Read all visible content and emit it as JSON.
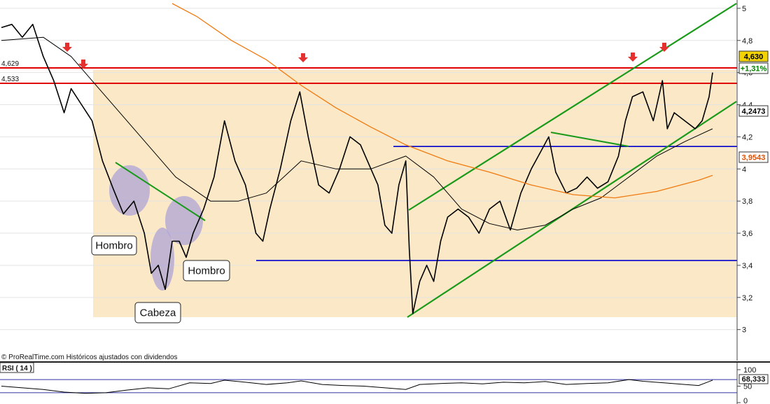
{
  "chart_data": {
    "type": "line",
    "price_panel": {
      "y_axis_ticks": [
        "3",
        "3,2",
        "3,4",
        "3,6",
        "3,8",
        "4",
        "4,2",
        "4,4",
        "4,6",
        "4,8",
        "5"
      ],
      "ylim": [
        2.99,
        5.03
      ],
      "bars": 1020,
      "resistance_lines": [
        {
          "value": 4.629,
          "label": "4,629",
          "color": "#e00000"
        },
        {
          "value": 4.533,
          "label": "4,533",
          "color": "#e00000"
        }
      ],
      "support_lines": [
        {
          "value": 4.14,
          "color": "#0000cc"
        },
        {
          "value": 3.43,
          "color": "#0000cc"
        }
      ],
      "value_badges": [
        {
          "text": "4,630",
          "bg": "#f2d200",
          "color": "#000000"
        },
        {
          "text": "+1,31%",
          "bg": "#ffffff",
          "color": "#008000"
        },
        {
          "text": "4,2473",
          "bg": "#ffffff",
          "color": "#000000"
        },
        {
          "text": "3,9543",
          "bg": "#ffffff",
          "color": "#e05000"
        }
      ],
      "annotations": [
        {
          "text": "Hombro"
        },
        {
          "text": "Cabeza"
        },
        {
          "text": "Hombro"
        }
      ],
      "series": [
        {
          "name": "",
          "kind": "price",
          "color": "#000000",
          "points": [
            [
              0,
              4.88
            ],
            [
              15,
              4.9
            ],
            [
              30,
              4.82
            ],
            [
              45,
              4.9
            ],
            [
              60,
              4.7
            ],
            [
              75,
              4.55
            ],
            [
              90,
              4.35
            ],
            [
              100,
              4.5
            ],
            [
              115,
              4.4
            ],
            [
              130,
              4.3
            ],
            [
              145,
              4.05
            ],
            [
              160,
              3.88
            ],
            [
              175,
              3.72
            ],
            [
              190,
              3.8
            ],
            [
              205,
              3.6
            ],
            [
              215,
              3.35
            ],
            [
              225,
              3.4
            ],
            [
              235,
              3.25
            ],
            [
              245,
              3.55
            ],
            [
              255,
              3.55
            ],
            [
              265,
              3.45
            ],
            [
              275,
              3.6
            ],
            [
              290,
              3.75
            ],
            [
              305,
              3.95
            ],
            [
              320,
              4.3
            ],
            [
              335,
              4.05
            ],
            [
              350,
              3.9
            ],
            [
              365,
              3.6
            ],
            [
              375,
              3.55
            ],
            [
              385,
              3.75
            ],
            [
              400,
              4.0
            ],
            [
              415,
              4.3
            ],
            [
              428,
              4.48
            ],
            [
              440,
              4.2
            ],
            [
              455,
              3.9
            ],
            [
              470,
              3.85
            ],
            [
              485,
              4.0
            ],
            [
              500,
              4.2
            ],
            [
              515,
              4.15
            ],
            [
              530,
              4.0
            ],
            [
              540,
              3.9
            ],
            [
              550,
              3.65
            ],
            [
              560,
              3.6
            ],
            [
              570,
              3.9
            ],
            [
              580,
              4.05
            ],
            [
              585,
              3.5
            ],
            [
              590,
              3.1
            ],
            [
              600,
              3.3
            ],
            [
              610,
              3.4
            ],
            [
              620,
              3.3
            ],
            [
              630,
              3.55
            ],
            [
              640,
              3.7
            ],
            [
              655,
              3.75
            ],
            [
              670,
              3.7
            ],
            [
              685,
              3.6
            ],
            [
              700,
              3.75
            ],
            [
              715,
              3.8
            ],
            [
              730,
              3.62
            ],
            [
              745,
              3.85
            ],
            [
              760,
              4.0
            ],
            [
              775,
              4.12
            ],
            [
              785,
              4.2
            ],
            [
              795,
              3.98
            ],
            [
              810,
              3.85
            ],
            [
              825,
              3.88
            ],
            [
              840,
              3.95
            ],
            [
              855,
              3.88
            ],
            [
              870,
              3.92
            ],
            [
              885,
              4.08
            ],
            [
              895,
              4.3
            ],
            [
              905,
              4.45
            ],
            [
              920,
              4.48
            ],
            [
              935,
              4.3
            ],
            [
              948,
              4.55
            ],
            [
              955,
              4.25
            ],
            [
              965,
              4.35
            ],
            [
              980,
              4.3
            ],
            [
              995,
              4.25
            ],
            [
              1005,
              4.3
            ],
            [
              1015,
              4.45
            ],
            [
              1020,
              4.6
            ]
          ]
        },
        {
          "name": "",
          "kind": "moving-average-short",
          "color": "#000000",
          "points": [
            [
              0,
              4.8
            ],
            [
              60,
              4.82
            ],
            [
              100,
              4.7
            ],
            [
              150,
              4.45
            ],
            [
              200,
              4.2
            ],
            [
              250,
              3.95
            ],
            [
              300,
              3.8
            ],
            [
              340,
              3.8
            ],
            [
              380,
              3.85
            ],
            [
              430,
              4.05
            ],
            [
              480,
              4.0
            ],
            [
              530,
              4.0
            ],
            [
              580,
              4.08
            ],
            [
              620,
              3.95
            ],
            [
              660,
              3.75
            ],
            [
              700,
              3.66
            ],
            [
              740,
              3.62
            ],
            [
              780,
              3.65
            ],
            [
              820,
              3.75
            ],
            [
              860,
              3.82
            ],
            [
              900,
              3.95
            ],
            [
              940,
              4.08
            ],
            [
              980,
              4.17
            ],
            [
              1020,
              4.25
            ]
          ]
        },
        {
          "name": "",
          "kind": "moving-average-long",
          "color": "#f07a10",
          "points": [
            [
              245,
              5.03
            ],
            [
              280,
              4.95
            ],
            [
              330,
              4.8
            ],
            [
              380,
              4.68
            ],
            [
              430,
              4.52
            ],
            [
              480,
              4.38
            ],
            [
              530,
              4.26
            ],
            [
              580,
              4.15
            ],
            [
              640,
              4.05
            ],
            [
              700,
              3.98
            ],
            [
              760,
              3.9
            ],
            [
              820,
              3.84
            ],
            [
              880,
              3.82
            ],
            [
              940,
              3.86
            ],
            [
              1000,
              3.93
            ],
            [
              1020,
              3.96
            ]
          ]
        },
        {
          "name": "",
          "kind": "rsi",
          "color": "#000000",
          "points": [
            [
              0,
              50
            ],
            [
              30,
              45
            ],
            [
              60,
              40
            ],
            [
              90,
              32
            ],
            [
              120,
              28
            ],
            [
              150,
              30
            ],
            [
              180,
              38
            ],
            [
              210,
              45
            ],
            [
              240,
              42
            ],
            [
              270,
              60
            ],
            [
              300,
              58
            ],
            [
              320,
              68
            ],
            [
              350,
              62
            ],
            [
              380,
              55
            ],
            [
              410,
              60
            ],
            [
              430,
              66
            ],
            [
              460,
              55
            ],
            [
              490,
              52
            ],
            [
              520,
              50
            ],
            [
              550,
              45
            ],
            [
              580,
              40
            ],
            [
              600,
              55
            ],
            [
              630,
              58
            ],
            [
              660,
              60
            ],
            [
              690,
              57
            ],
            [
              720,
              62
            ],
            [
              750,
              60
            ],
            [
              780,
              64
            ],
            [
              810,
              55
            ],
            [
              840,
              58
            ],
            [
              870,
              60
            ],
            [
              900,
              70
            ],
            [
              920,
              65
            ],
            [
              950,
              60
            ],
            [
              980,
              55
            ],
            [
              1000,
              52
            ],
            [
              1020,
              68
            ]
          ]
        }
      ]
    },
    "rsi_panel": {
      "label": "RSI ( 14 )",
      "y_axis_ticks": [
        "0",
        "50",
        "100"
      ],
      "ylim": [
        0,
        100
      ],
      "levels": [
        70,
        30
      ],
      "current_value": "68,333"
    },
    "watermark": "© ProRealTime.com Históricos ajustados con dividendos"
  }
}
